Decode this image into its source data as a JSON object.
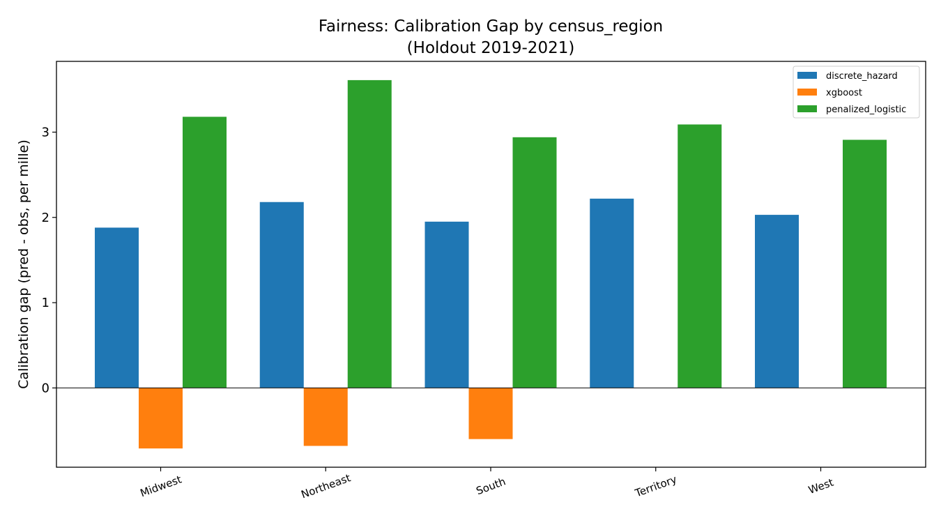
{
  "chart_data": {
    "type": "bar",
    "title": "Fairness: Calibration Gap by census_region",
    "subtitle": "(Holdout 2019-2021)",
    "xlabel": "",
    "ylabel": "Calibration gap (pred - obs, per mille)",
    "categories": [
      "Midwest",
      "Northeast",
      "South",
      "Territory",
      "West"
    ],
    "series": [
      {
        "name": "discrete_hazard",
        "color": "#1f77b4",
        "values": [
          1.88,
          2.18,
          1.95,
          2.22,
          2.03
        ]
      },
      {
        "name": "xgboost",
        "color": "#ff7f0e",
        "values": [
          -0.71,
          -0.68,
          -0.6,
          null,
          null
        ]
      },
      {
        "name": "penalized_logistic",
        "color": "#2ca02c",
        "values": [
          3.18,
          3.61,
          2.94,
          3.09,
          2.91
        ]
      }
    ],
    "ylim": [
      -0.93,
      3.83
    ],
    "yticks": [
      0,
      1,
      2,
      3
    ],
    "grid": false,
    "legend_position": "top-right",
    "zero_line": true
  }
}
